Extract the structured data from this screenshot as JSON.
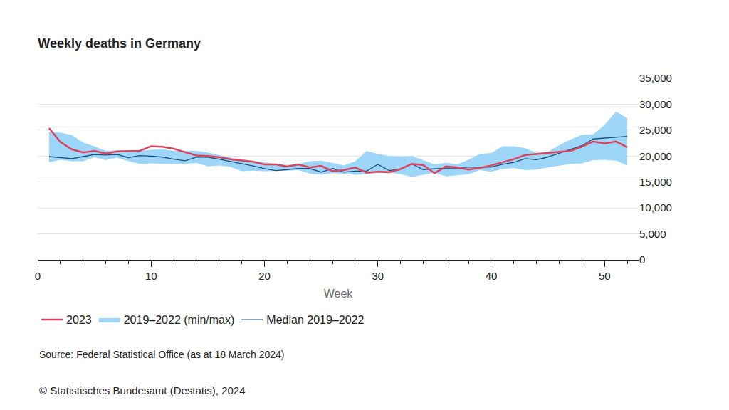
{
  "chart_data": {
    "type": "line",
    "title": "Weekly deaths in Germany",
    "x_label": "Week",
    "source": "Source: Federal Statistical Office (as at 18 March 2024)",
    "copyright": "© Statistisches Bundesamt (Destatis), 2024",
    "x": [
      1,
      2,
      3,
      4,
      5,
      6,
      7,
      8,
      9,
      10,
      11,
      12,
      13,
      14,
      15,
      16,
      17,
      18,
      19,
      20,
      21,
      22,
      23,
      24,
      25,
      26,
      27,
      28,
      29,
      30,
      31,
      32,
      33,
      34,
      35,
      36,
      37,
      38,
      39,
      40,
      41,
      42,
      43,
      44,
      45,
      46,
      47,
      48,
      49,
      50,
      51,
      52
    ],
    "series": [
      {
        "name": "Median 2019–2022",
        "type": "line",
        "color": "#1b4f7b",
        "values": [
          19900,
          19700,
          19500,
          19900,
          20300,
          20200,
          20300,
          19700,
          20100,
          20000,
          19800,
          19400,
          19100,
          19800,
          19800,
          19400,
          19000,
          18600,
          18100,
          17600,
          17200,
          17400,
          17600,
          17600,
          16900,
          17600,
          16900,
          17100,
          17100,
          18400,
          17200,
          17500,
          18500,
          17400,
          17600,
          17700,
          17700,
          17900,
          17800,
          17900,
          18400,
          18800,
          19500,
          19300,
          19800,
          20500,
          21200,
          22000,
          23300,
          23500,
          23600,
          23800
        ]
      },
      {
        "name": "2019–2022 (min/max)",
        "type": "band",
        "color": "#9dd6f9",
        "min": [
          18800,
          19300,
          19000,
          19000,
          19800,
          19200,
          19700,
          19000,
          18500,
          18600,
          18500,
          18500,
          18500,
          18700,
          18000,
          18200,
          17900,
          17100,
          17200,
          17100,
          17100,
          17200,
          17300,
          16600,
          16400,
          16700,
          16600,
          16400,
          16500,
          16900,
          16800,
          16500,
          16000,
          16400,
          16800,
          16100,
          16300,
          16500,
          17300,
          17000,
          17500,
          17700,
          17300,
          17400,
          17800,
          18100,
          18500,
          18600,
          19200,
          19300,
          19100,
          18200
        ],
        "max": [
          24700,
          24500,
          24100,
          22600,
          21900,
          21000,
          21100,
          21000,
          21000,
          21200,
          21300,
          21000,
          21000,
          21000,
          20700,
          20200,
          19700,
          19400,
          19100,
          18700,
          18500,
          18300,
          18500,
          19000,
          19100,
          18700,
          18200,
          19000,
          21000,
          20400,
          20000,
          19900,
          20000,
          19200,
          18400,
          18700,
          18400,
          19300,
          20400,
          20600,
          21900,
          21900,
          21500,
          20600,
          20800,
          22100,
          23200,
          24100,
          24200,
          26000,
          28600,
          27300
        ]
      },
      {
        "name": "2023",
        "type": "line",
        "color": "#d9455f",
        "values": [
          25400,
          22700,
          21300,
          20700,
          21000,
          20500,
          20900,
          20900,
          21000,
          21900,
          21800,
          21400,
          20800,
          20100,
          20000,
          19800,
          19400,
          19100,
          18900,
          18400,
          18400,
          18000,
          18400,
          17800,
          18100,
          17100,
          17300,
          17800,
          16800,
          17000,
          16900,
          17500,
          18500,
          18300,
          16700,
          18000,
          17800,
          17400,
          17700,
          18200,
          18800,
          19400,
          20200,
          20400,
          20600,
          20800,
          21000,
          21800,
          22800,
          22400,
          22800,
          21700
        ]
      }
    ],
    "xlim": [
      0,
      53
    ],
    "xticks": [
      0,
      10,
      20,
      30,
      40,
      50
    ],
    "ylim": [
      0,
      35000
    ],
    "yticks": [
      0,
      {
        "value": 5000,
        "label": "5,000"
      },
      {
        "value": 10000,
        "label": "10,000"
      },
      {
        "value": 15000,
        "label": "15,000"
      },
      {
        "value": 20000,
        "label": "20,000"
      },
      {
        "value": 25000,
        "label": "25,000"
      },
      {
        "value": 30000,
        "label": "30,000"
      },
      {
        "value": 35000,
        "label": "35,000"
      }
    ],
    "grid": true,
    "legend": "bottom"
  }
}
